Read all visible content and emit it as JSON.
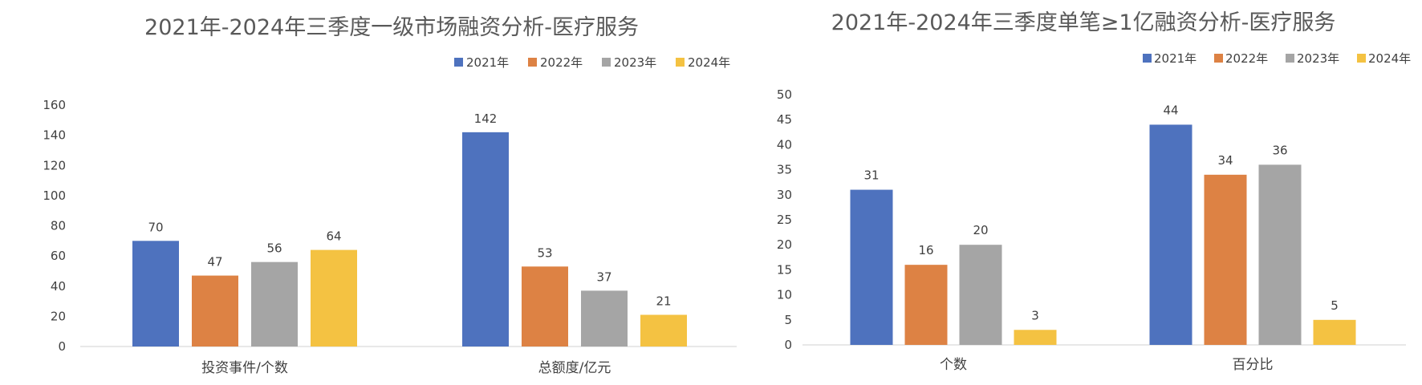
{
  "chart_data": [
    {
      "type": "bar",
      "title": "2021年-2024年三季度一级市场融资分析-医疗服务",
      "categories": [
        "投资事件/个数",
        "总额度/亿元"
      ],
      "ylim": [
        0,
        160
      ],
      "yticks": [
        0,
        20,
        40,
        60,
        80,
        100,
        120,
        140,
        160
      ],
      "grid": false,
      "legend_position": "top-right",
      "series": [
        {
          "name": "2021年",
          "color": "#4e72be",
          "values": [
            70,
            142
          ]
        },
        {
          "name": "2022年",
          "color": "#dd8244",
          "values": [
            47,
            53
          ]
        },
        {
          "name": "2023年",
          "color": "#a5a5a5",
          "values": [
            56,
            37
          ]
        },
        {
          "name": "2024年",
          "color": "#f4c242",
          "values": [
            64,
            21
          ]
        }
      ]
    },
    {
      "type": "bar",
      "title": "2021年-2024年三季度单笔≥1亿融资分析-医疗服务",
      "categories": [
        "个数",
        "百分比"
      ],
      "ylim": [
        0,
        50
      ],
      "yticks": [
        0,
        5,
        10,
        15,
        20,
        25,
        30,
        35,
        40,
        45,
        50
      ],
      "grid": false,
      "legend_position": "top-right",
      "series": [
        {
          "name": "2021年",
          "color": "#4e72be",
          "values": [
            31,
            44
          ]
        },
        {
          "name": "2022年",
          "color": "#dd8244",
          "values": [
            16,
            34
          ]
        },
        {
          "name": "2023年",
          "color": "#a5a5a5",
          "values": [
            20,
            36
          ]
        },
        {
          "name": "2024年",
          "color": "#f4c242",
          "values": [
            3,
            5
          ]
        }
      ]
    }
  ]
}
